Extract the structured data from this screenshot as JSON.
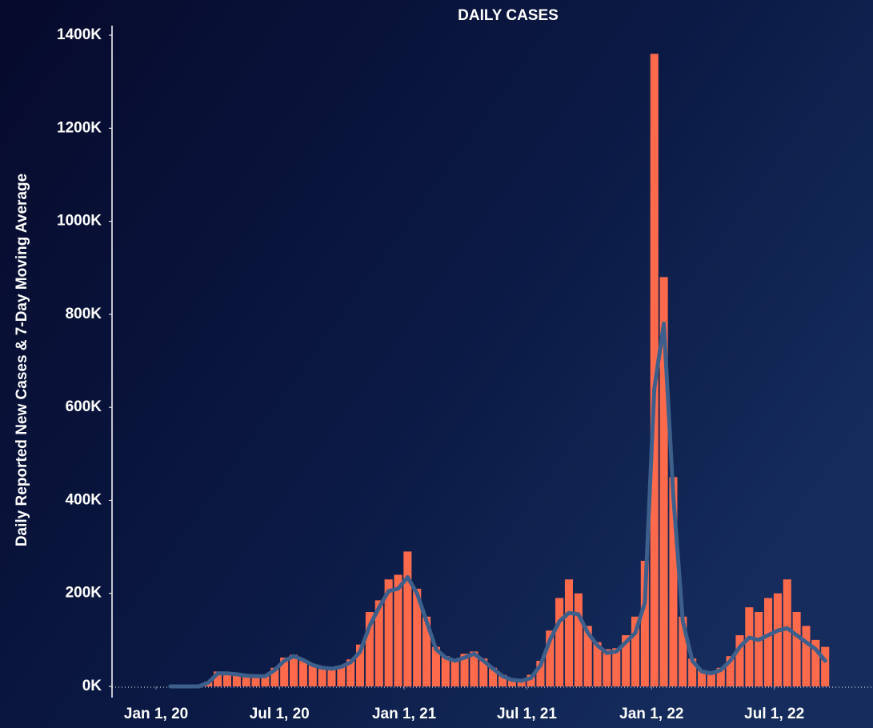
{
  "chart_data": {
    "type": "bar_line",
    "title": "DAILY CASES",
    "y_label": "Daily Reported New Cases & 7-Day Moving Average",
    "x": [
      "2020-01-22",
      "2020-02-05",
      "2020-02-19",
      "2020-03-04",
      "2020-03-18",
      "2020-04-01",
      "2020-04-15",
      "2020-04-29",
      "2020-05-13",
      "2020-05-27",
      "2020-06-10",
      "2020-06-24",
      "2020-07-08",
      "2020-07-22",
      "2020-08-05",
      "2020-08-19",
      "2020-09-02",
      "2020-09-16",
      "2020-09-30",
      "2020-10-14",
      "2020-10-28",
      "2020-11-11",
      "2020-11-25",
      "2020-12-09",
      "2020-12-23",
      "2021-01-06",
      "2021-01-20",
      "2021-02-03",
      "2021-02-17",
      "2021-03-03",
      "2021-03-17",
      "2021-03-31",
      "2021-04-14",
      "2021-04-28",
      "2021-05-12",
      "2021-05-26",
      "2021-06-09",
      "2021-06-23",
      "2021-07-07",
      "2021-07-21",
      "2021-08-04",
      "2021-08-18",
      "2021-09-01",
      "2021-09-15",
      "2021-09-29",
      "2021-10-13",
      "2021-10-27",
      "2021-11-10",
      "2021-11-24",
      "2021-12-08",
      "2021-12-22",
      "2022-01-05",
      "2022-01-19",
      "2022-02-02",
      "2022-02-16",
      "2022-03-02",
      "2022-03-16",
      "2022-03-30",
      "2022-04-13",
      "2022-04-27",
      "2022-05-11",
      "2022-05-25",
      "2022-06-08",
      "2022-06-22",
      "2022-07-06",
      "2022-07-20",
      "2022-08-03",
      "2022-08-17",
      "2022-08-31",
      "2022-09-14"
    ],
    "series": [
      {
        "color": "#ff6a4d",
        "values": [
          0,
          0,
          0,
          0,
          10000,
          32000,
          30000,
          27000,
          25000,
          22000,
          25000,
          40000,
          62000,
          68000,
          55000,
          45000,
          40000,
          36000,
          45000,
          58000,
          90000,
          160000,
          185000,
          230000,
          240000,
          290000,
          210000,
          150000,
          85000,
          65000,
          58000,
          70000,
          75000,
          60000,
          40000,
          25000,
          15000,
          13000,
          25000,
          55000,
          120000,
          190000,
          230000,
          200000,
          130000,
          95000,
          80000,
          82000,
          110000,
          150000,
          270000,
          1360000,
          880000,
          450000,
          150000,
          60000,
          35000,
          30000,
          40000,
          65000,
          110000,
          170000,
          160000,
          190000,
          200000,
          230000,
          160000,
          130000,
          100000,
          85000
        ]
      },
      {
        "color": "#3c5f8c",
        "values": [
          0,
          0,
          0,
          0,
          8000,
          28000,
          28000,
          26000,
          23000,
          22000,
          22000,
          35000,
          55000,
          65000,
          57000,
          46000,
          40000,
          38000,
          42000,
          52000,
          75000,
          130000,
          170000,
          205000,
          210000,
          235000,
          200000,
          140000,
          80000,
          62000,
          55000,
          62000,
          70000,
          55000,
          38000,
          22000,
          14000,
          12000,
          18000,
          45000,
          100000,
          140000,
          158000,
          155000,
          115000,
          88000,
          72000,
          75000,
          95000,
          115000,
          180000,
          640000,
          780000,
          410000,
          140000,
          55000,
          32000,
          28000,
          35000,
          55000,
          85000,
          105000,
          100000,
          110000,
          120000,
          125000,
          110000,
          95000,
          80000,
          55000
        ]
      }
    ],
    "xlim": [
      "2019-10-28",
      "2022-10-18"
    ],
    "xticks": [
      {
        "value": "2020-01-01",
        "label": "Jan 1, 20"
      },
      {
        "value": "2020-07-01",
        "label": "Jul 1, 20"
      },
      {
        "value": "2021-01-01",
        "label": "Jan 1, 21"
      },
      {
        "value": "2021-07-01",
        "label": "Jul 1, 21"
      },
      {
        "value": "2022-01-01",
        "label": "Jan 1, 22"
      },
      {
        "value": "2022-07-01",
        "label": "Jul 1, 22"
      }
    ],
    "ylim": [
      0,
      1400000
    ],
    "yticks": [
      {
        "value": 0,
        "label": "0K"
      },
      {
        "value": 200000,
        "label": "200K"
      },
      {
        "value": 400000,
        "label": "400K"
      },
      {
        "value": 600000,
        "label": "600K"
      },
      {
        "value": 800000,
        "label": "800K"
      },
      {
        "value": 1000000,
        "label": "1000K"
      },
      {
        "value": 1200000,
        "label": "1200K"
      },
      {
        "value": 1400000,
        "label": "1400K"
      }
    ]
  }
}
